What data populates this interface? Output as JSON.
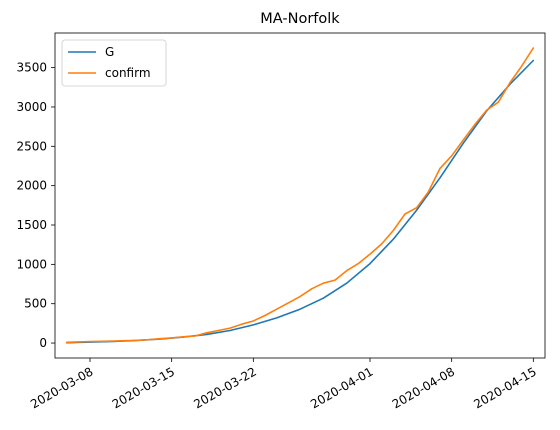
{
  "chart_data": {
    "type": "line",
    "title": "MA-Norfolk",
    "xlabel": "",
    "ylabel": "",
    "x_ticks": [
      "2020-03-08",
      "2020-03-15",
      "2020-03-22",
      "2020-04-01",
      "2020-04-08",
      "2020-04-15"
    ],
    "y_ticks": [
      0,
      500,
      1000,
      1500,
      2000,
      2500,
      3000,
      3500
    ],
    "ylim": [
      -190,
      3940
    ],
    "xlim": [
      "2020-03-05",
      "2020-04-16"
    ],
    "legend_position": "upper-left",
    "grid": false,
    "series": [
      {
        "name": "G",
        "color": "#1f77b4",
        "x": [
          "2020-03-06",
          "2020-03-08",
          "2020-03-10",
          "2020-03-12",
          "2020-03-14",
          "2020-03-16",
          "2020-03-18",
          "2020-03-20",
          "2020-03-22",
          "2020-03-24",
          "2020-03-26",
          "2020-03-28",
          "2020-03-30",
          "2020-04-01",
          "2020-04-03",
          "2020-04-05",
          "2020-04-07",
          "2020-04-09",
          "2020-04-11",
          "2020-04-13",
          "2020-04-15"
        ],
        "y": [
          5,
          12,
          20,
          32,
          50,
          75,
          110,
          160,
          230,
          320,
          430,
          570,
          760,
          1010,
          1320,
          1690,
          2100,
          2540,
          2950,
          3290,
          3590
        ]
      },
      {
        "name": "confirm",
        "color": "#ff7f0e",
        "x": [
          "2020-03-06",
          "2020-03-07",
          "2020-03-08",
          "2020-03-09",
          "2020-03-10",
          "2020-03-11",
          "2020-03-12",
          "2020-03-13",
          "2020-03-14",
          "2020-03-15",
          "2020-03-16",
          "2020-03-17",
          "2020-03-18",
          "2020-03-19",
          "2020-03-20",
          "2020-03-21",
          "2020-03-22",
          "2020-03-23",
          "2020-03-24",
          "2020-03-25",
          "2020-03-26",
          "2020-03-27",
          "2020-03-28",
          "2020-03-29",
          "2020-03-30",
          "2020-03-31",
          "2020-04-01",
          "2020-04-02",
          "2020-04-03",
          "2020-04-04",
          "2020-04-05",
          "2020-04-06",
          "2020-04-07",
          "2020-04-08",
          "2020-04-09",
          "2020-04-10",
          "2020-04-11",
          "2020-04-12",
          "2020-04-13",
          "2020-04-14",
          "2020-04-15"
        ],
        "y": [
          10,
          15,
          20,
          22,
          25,
          30,
          35,
          42,
          55,
          65,
          80,
          90,
          130,
          160,
          190,
          240,
          280,
          350,
          430,
          510,
          590,
          690,
          760,
          800,
          920,
          1010,
          1130,
          1260,
          1430,
          1640,
          1720,
          1920,
          2220,
          2380,
          2580,
          2780,
          2960,
          3060,
          3310,
          3520,
          3750
        ]
      }
    ]
  }
}
